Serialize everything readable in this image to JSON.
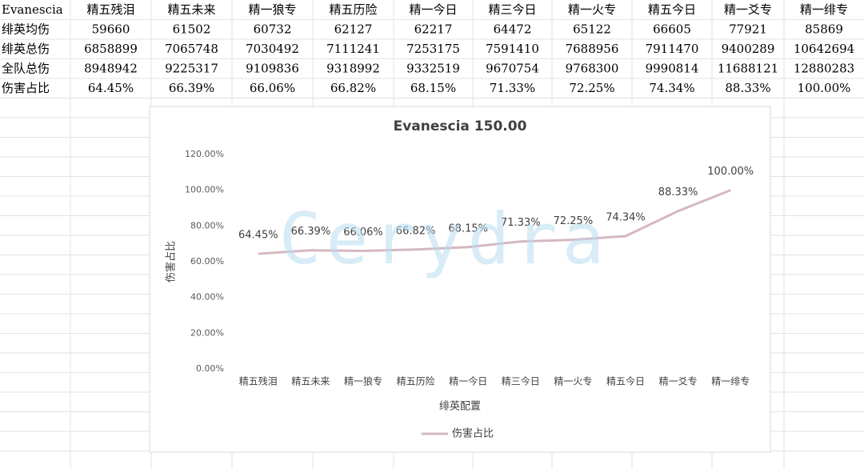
{
  "table": {
    "header": [
      "Evanescia",
      "精五残泪",
      "精五未来",
      "精一狼专",
      "精五历险",
      "精一今日",
      "精三今日",
      "精一火专",
      "精五今日",
      "精一爻专",
      "精一绯专"
    ],
    "rows": [
      [
        "绯英均伤",
        "59660",
        "61502",
        "60732",
        "62127",
        "62217",
        "64472",
        "65122",
        "66605",
        "77921",
        "85869"
      ],
      [
        "绯英总伤",
        "6858899",
        "7065748",
        "7030492",
        "7111241",
        "7253175",
        "7591410",
        "7688956",
        "7911470",
        "9400289",
        "10642694"
      ],
      [
        "全队总伤",
        "8948942",
        "9225317",
        "9109836",
        "9318992",
        "9332519",
        "9670754",
        "9768300",
        "9990814",
        "11688121",
        "12880283"
      ],
      [
        "伤害占比",
        "64.45%",
        "66.39%",
        "66.06%",
        "66.82%",
        "68.15%",
        "71.33%",
        "72.25%",
        "74.34%",
        "88.33%",
        "100.00%"
      ]
    ]
  },
  "chart_data": {
    "type": "line",
    "title": "Evanescia 150.00",
    "x_label": "绯英配置",
    "y_label": "伤害占比",
    "watermark": "Cerydra",
    "categories": [
      "精五残泪",
      "精五未来",
      "精一狼专",
      "精五历险",
      "精一今日",
      "精三今日",
      "精一火专",
      "精五今日",
      "精一爻专",
      "精一绯专"
    ],
    "series": [
      {
        "name": "伤害占比",
        "color": "#d5b8c0",
        "values": [
          64.45,
          66.39,
          66.06,
          66.82,
          68.15,
          71.33,
          72.25,
          74.34,
          88.33,
          100.0
        ],
        "value_labels": [
          "64.45%",
          "66.39%",
          "66.06%",
          "66.82%",
          "68.15%",
          "71.33%",
          "72.25%",
          "74.34%",
          "88.33%",
          "100.00%"
        ]
      }
    ],
    "ylim": [
      0,
      120
    ],
    "yticks": [
      {
        "value": 0,
        "label": "0.00%"
      },
      {
        "value": 20,
        "label": "20.00%"
      },
      {
        "value": 40,
        "label": "40.00%"
      },
      {
        "value": 60,
        "label": "60.00%"
      },
      {
        "value": 80,
        "label": "80.00%"
      },
      {
        "value": 100,
        "label": "100.00%"
      },
      {
        "value": 120,
        "label": "120.00%"
      }
    ],
    "grid": false,
    "legend": "bottom"
  }
}
